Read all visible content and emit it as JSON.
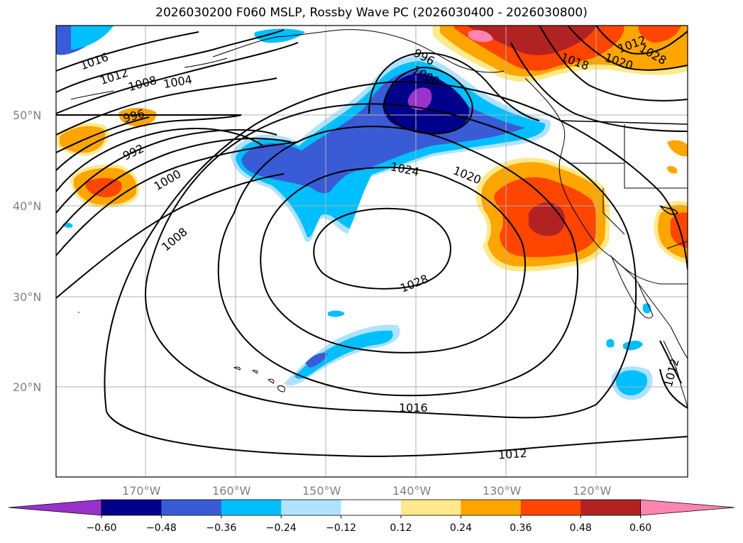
{
  "title": "2026030200 F060 MSLP, Rossby Wave PC (2026030400 - 2026030800)",
  "latitude_labels": [
    "50°N",
    "40°N",
    "30°N",
    "20°N"
  ],
  "longitude_labels": [
    "170°W",
    "160°W",
    "150°W",
    "140°W",
    "130°W",
    "120°W"
  ],
  "isobar_labels": [
    "1016",
    "1012",
    "1008",
    "1004",
    "996",
    "992",
    "1000",
    "1008",
    "996",
    "1000",
    "1024",
    "1020",
    "1028",
    "1016",
    "1012",
    "1012",
    "1020",
    "1028",
    "1018",
    "1012"
  ],
  "colorbar": {
    "ticks": [
      "−0.60",
      "−0.48",
      "−0.36",
      "−0.24",
      "−0.12",
      "0.12",
      "0.24",
      "0.36",
      "0.48",
      "0.60"
    ],
    "colors": [
      "#9932cc",
      "#00008b",
      "#3a5bd6",
      "#00bfff",
      "#b0e2ff",
      "#ffffff",
      "#ffe98a",
      "#ffa500",
      "#ff4500",
      "#b22222",
      "#ff85b0"
    ]
  },
  "colors": {
    "frame": "#000000",
    "grid": "#b0b0b0",
    "coast": "#000000",
    "isobar": "#000000"
  }
}
